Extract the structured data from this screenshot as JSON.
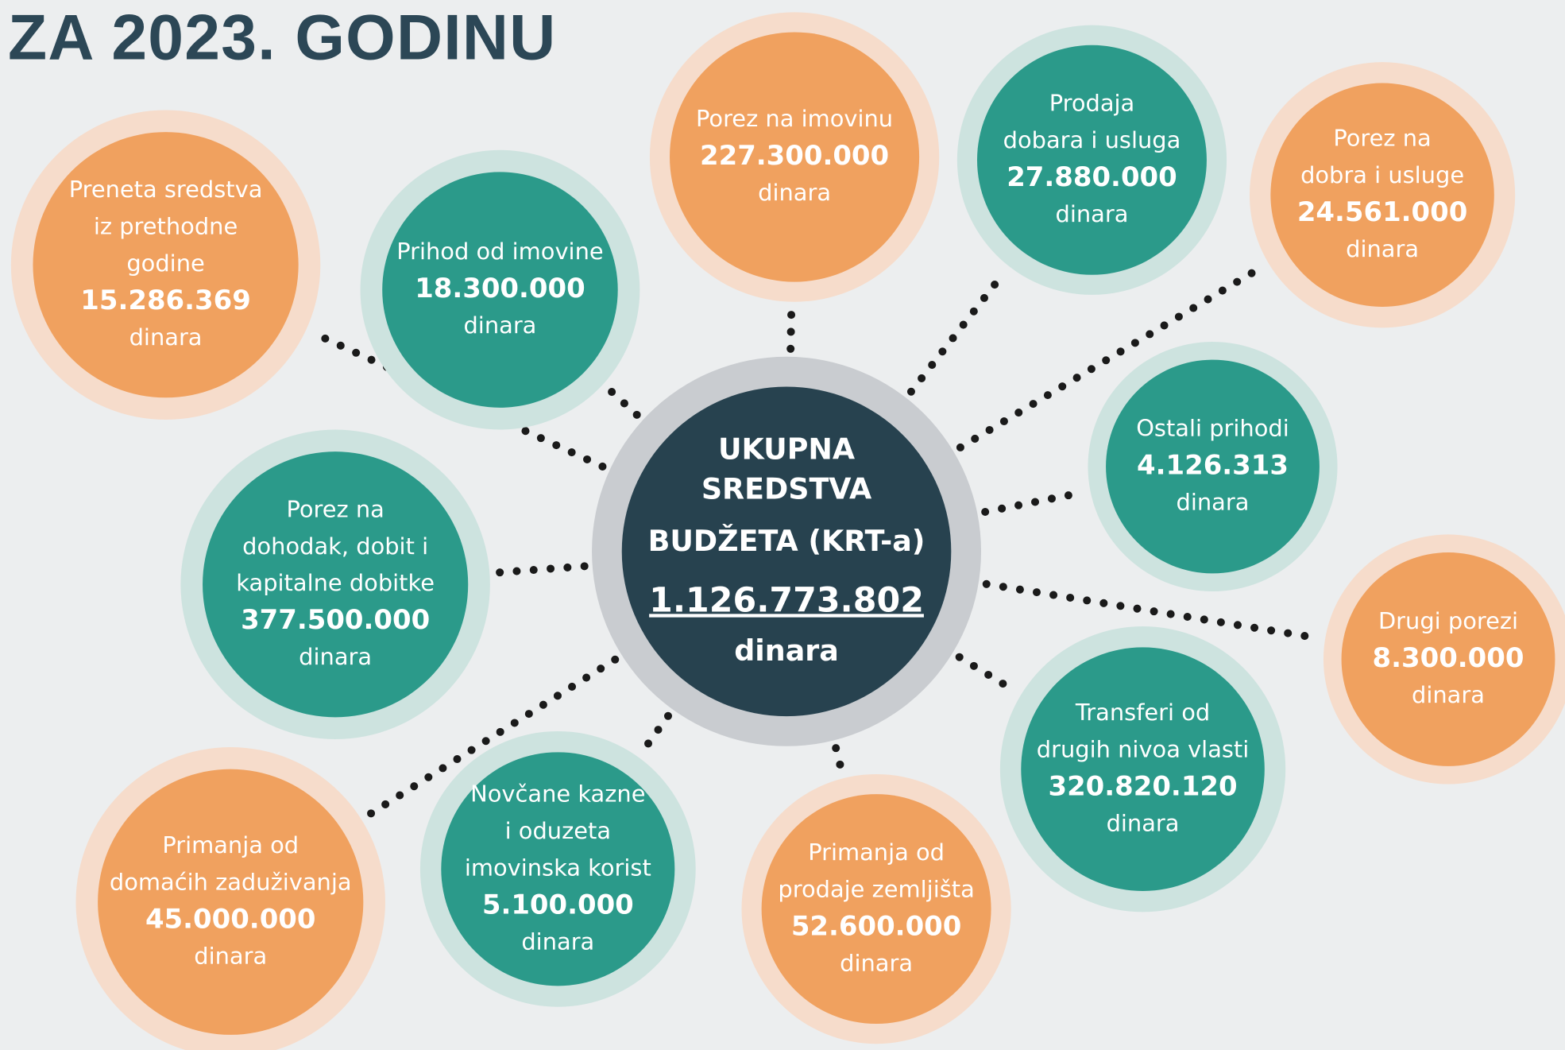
{
  "title": "ZA 2023. GODINU",
  "center": {
    "lines": [
      "UKUPNA",
      "SREDSTVA",
      "BUDŽETA (KRT-a)"
    ],
    "amount": "1.126.773.802",
    "unit": "dinara",
    "color": "#27424f"
  },
  "nodes": [
    {
      "lines": [
        "Preneta sredstva",
        "iz prethodne",
        "godine"
      ],
      "amount": "15.286.369",
      "unit": "dinara",
      "color": "#f0a15f"
    },
    {
      "lines": [
        "Prihod od imovine"
      ],
      "amount": "18.300.000",
      "unit": "dinara",
      "color": "#2b9a8a"
    },
    {
      "lines": [
        "Porez na imovinu"
      ],
      "amount": "227.300.000",
      "unit": "dinara",
      "color": "#f0a15f"
    },
    {
      "lines": [
        "Prodaja",
        "dobara i usluga"
      ],
      "amount": "27.880.000",
      "unit": "dinara",
      "color": "#2b9a8a"
    },
    {
      "lines": [
        "Porez na",
        "dobra i usluge"
      ],
      "amount": "24.561.000",
      "unit": "dinara",
      "color": "#f0a15f"
    },
    {
      "lines": [
        "Ostali prihodi"
      ],
      "amount": "4.126.313",
      "unit": "dinara",
      "color": "#2b9a8a"
    },
    {
      "lines": [
        "Porez na",
        "dohodak, dobit i",
        "kapitalne dobitke"
      ],
      "amount": "377.500.000",
      "unit": "dinara",
      "color": "#2b9a8a"
    },
    {
      "lines": [
        "Drugi porezi"
      ],
      "amount": "8.300.000",
      "unit": "dinara",
      "color": "#f0a15f"
    },
    {
      "lines": [
        "Transferi od",
        "drugih nivoa vlasti"
      ],
      "amount": "320.820.120",
      "unit": "dinara",
      "color": "#2b9a8a"
    },
    {
      "lines": [
        "Primanja od",
        "domaćih zaduživanja"
      ],
      "amount": "45.000.000",
      "unit": "dinara",
      "color": "#f0a15f"
    },
    {
      "lines": [
        "Novčane kazne",
        "i oduzeta",
        "imovinska korist"
      ],
      "amount": "5.100.000",
      "unit": "dinara",
      "color": "#2b9a8a"
    },
    {
      "lines": [
        "Primanja od",
        "prodaje zemljišta"
      ],
      "amount": "52.600.000",
      "unit": "dinara",
      "color": "#f0a15f"
    }
  ]
}
